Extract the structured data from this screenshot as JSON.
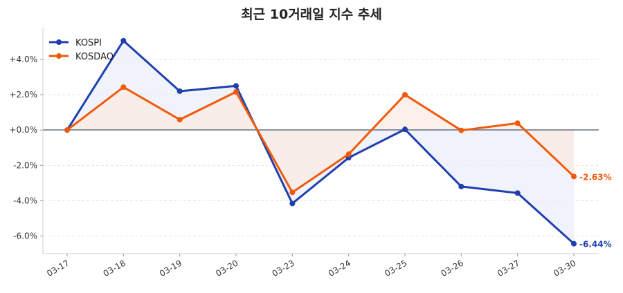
{
  "chart_data": {
    "type": "line",
    "title": "최근 10거래일 지수 추세",
    "xlabel": "",
    "ylabel": "",
    "categories": [
      "03-17",
      "03-18",
      "03-19",
      "03-20",
      "03-23",
      "03-24",
      "03-25",
      "03-26",
      "03-27",
      "03-30"
    ],
    "ylim": [
      -7,
      5.8
    ],
    "yticks": [
      -6,
      -4,
      -2,
      0,
      2,
      4
    ],
    "ytick_labels": [
      "-6.0%",
      "-4.0%",
      "-2.0%",
      "+0.0%",
      "+2.0%",
      "+4.0%"
    ],
    "grid": true,
    "legend": "top-left",
    "series": [
      {
        "name": "KOSPI",
        "color": "#1f3fae",
        "fill": "#e9eef9",
        "values": [
          0,
          5.06,
          2.2,
          2.5,
          -4.16,
          -1.57,
          0.04,
          -3.2,
          -3.57,
          -6.44
        ],
        "end_label": "-6.44%"
      },
      {
        "name": "KOSDAQ",
        "color": "#f05a0a",
        "fill": "#fbe9e1",
        "values": [
          0,
          2.43,
          0.59,
          2.16,
          -3.53,
          -1.37,
          2.0,
          -0.02,
          0.39,
          -2.63
        ],
        "end_label": "-2.63%"
      }
    ]
  }
}
